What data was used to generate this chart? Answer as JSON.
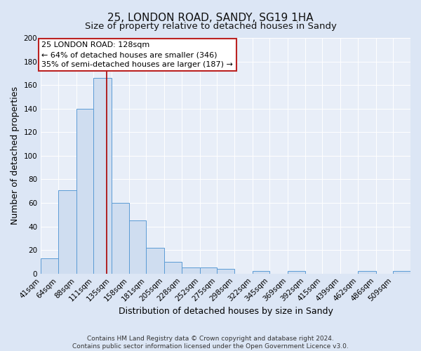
{
  "title": "25, LONDON ROAD, SANDY, SG19 1HA",
  "subtitle": "Size of property relative to detached houses in Sandy",
  "xlabel": "Distribution of detached houses by size in Sandy",
  "ylabel": "Number of detached properties",
  "footer_line1": "Contains HM Land Registry data © Crown copyright and database right 2024.",
  "footer_line2": "Contains public sector information licensed under the Open Government Licence v3.0.",
  "bin_labels": [
    "41sqm",
    "64sqm",
    "88sqm",
    "111sqm",
    "135sqm",
    "158sqm",
    "181sqm",
    "205sqm",
    "228sqm",
    "252sqm",
    "275sqm",
    "298sqm",
    "322sqm",
    "345sqm",
    "369sqm",
    "392sqm",
    "415sqm",
    "439sqm",
    "462sqm",
    "486sqm",
    "509sqm"
  ],
  "bin_edges": [
    41,
    64,
    88,
    111,
    135,
    158,
    181,
    205,
    228,
    252,
    275,
    298,
    322,
    345,
    369,
    392,
    415,
    439,
    462,
    486,
    509
  ],
  "bar_heights": [
    13,
    71,
    140,
    166,
    60,
    45,
    22,
    10,
    5,
    5,
    4,
    0,
    2,
    0,
    2,
    0,
    0,
    0,
    2,
    0,
    2
  ],
  "bar_color": "#cfddf0",
  "bar_edge_color": "#5b9bd5",
  "property_line_x": 128,
  "property_line_color": "#aa0000",
  "annotation_line1": "25 LONDON ROAD: 128sqm",
  "annotation_line2": "← 64% of detached houses are smaller (346)",
  "annotation_line3": "35% of semi-detached houses are larger (187) →",
  "annotation_box_color": "#ffffff",
  "annotation_box_edge_color": "#bb2222",
  "ylim": [
    0,
    200
  ],
  "yticks": [
    0,
    20,
    40,
    60,
    80,
    100,
    120,
    140,
    160,
    180,
    200
  ],
  "background_color": "#dce6f5",
  "plot_background_color": "#e8eef8",
  "grid_color": "#ffffff",
  "title_fontsize": 11,
  "subtitle_fontsize": 9.5,
  "axis_label_fontsize": 9,
  "tick_fontsize": 7.5,
  "annotation_fontsize": 8,
  "footer_fontsize": 6.5
}
